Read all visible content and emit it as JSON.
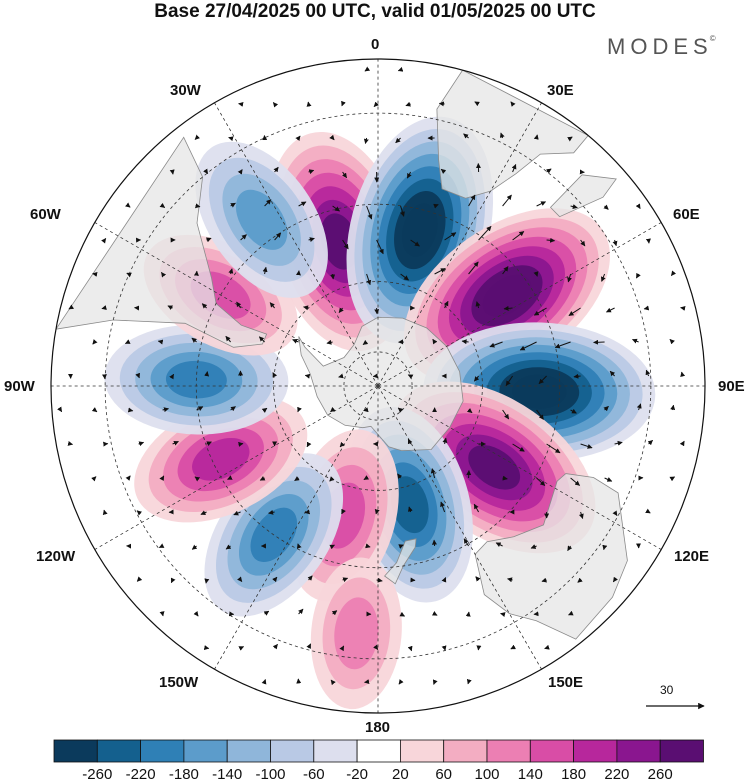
{
  "header": {
    "title": "Base 27/04/2025 00 UTC, valid 01/05/2025 00 UTC",
    "brand": "MODES",
    "brand_mark": "©"
  },
  "map": {
    "projection": "south-polar-stereographic",
    "longitude_labels": [
      "0",
      "30E",
      "60E",
      "90E",
      "120E",
      "150E",
      "180",
      "150W",
      "120W",
      "90W",
      "60W",
      "30W"
    ],
    "reference_vector": {
      "value": "30"
    },
    "colors": {
      "land": "#e6e6e6",
      "coast": "#8a8a8a",
      "grid": "#333333",
      "ocean": "#ffffff"
    },
    "anomaly_centers": [
      {
        "lon": -15,
        "lat": -48,
        "value": 240
      },
      {
        "lon": 15,
        "lat": -45,
        "value": -260
      },
      {
        "lon": 55,
        "lat": -46,
        "value": 260
      },
      {
        "lon": 92,
        "lat": -45,
        "value": -260
      },
      {
        "lon": 125,
        "lat": -50,
        "value": 250
      },
      {
        "lon": 165,
        "lat": -55,
        "value": -180
      },
      {
        "lon": -165,
        "lat": -52,
        "value": 120
      },
      {
        "lon": -145,
        "lat": -40,
        "value": -140
      },
      {
        "lon": -115,
        "lat": -42,
        "value": 140
      },
      {
        "lon": -88,
        "lat": -40,
        "value": -140
      },
      {
        "lon": -60,
        "lat": -40,
        "value": 100
      },
      {
        "lon": -35,
        "lat": -35,
        "value": -120
      },
      {
        "lon": -175,
        "lat": -25,
        "value": 60
      }
    ]
  },
  "colorbar": {
    "labels": [
      "-260",
      "-220",
      "-180",
      "-140",
      "-100",
      "-60",
      "-20",
      "20",
      "60",
      "100",
      "140",
      "180",
      "220",
      "260"
    ],
    "colors": [
      "#0b3a5c",
      "#14608e",
      "#2f80b6",
      "#5c9ccb",
      "#8fb6da",
      "#b9c9e5",
      "#dddfee",
      "#ffffff",
      "#f8d6da",
      "#f3adc2",
      "#ec7fb3",
      "#d94da6",
      "#b7279c",
      "#8a168f",
      "#5a0e72"
    ]
  }
}
